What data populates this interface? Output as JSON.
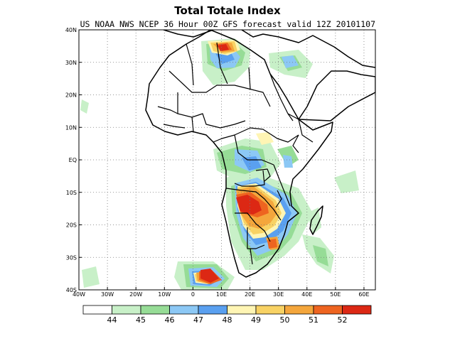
{
  "title": "Total Totale Index",
  "subtitle": "US NOAA NWS NCEP 36 Hour 00Z GFS forecast valid 12Z 20101107",
  "map": {
    "lon_range": [
      -40,
      64
    ],
    "lat_range": [
      -40,
      40
    ],
    "lon_ticks": [
      {
        "value": -40,
        "label": "40W"
      },
      {
        "value": -30,
        "label": "30W"
      },
      {
        "value": -20,
        "label": "20W"
      },
      {
        "value": -10,
        "label": "10W"
      },
      {
        "value": 0,
        "label": "0"
      },
      {
        "value": 10,
        "label": "10E"
      },
      {
        "value": 20,
        "label": "20E"
      },
      {
        "value": 30,
        "label": "30E"
      },
      {
        "value": 40,
        "label": "40E"
      },
      {
        "value": 50,
        "label": "50E"
      },
      {
        "value": 60,
        "label": "60E"
      }
    ],
    "lat_ticks": [
      {
        "value": 40,
        "label": "40N"
      },
      {
        "value": 30,
        "label": "30N"
      },
      {
        "value": 20,
        "label": "20N"
      },
      {
        "value": 10,
        "label": "10N"
      },
      {
        "value": 0,
        "label": "EQ"
      },
      {
        "value": -10,
        "label": "10S"
      },
      {
        "value": -20,
        "label": "20S"
      },
      {
        "value": -30,
        "label": "30S"
      },
      {
        "value": -40,
        "label": "40S"
      }
    ],
    "grid": true,
    "field_colors": {
      "44": "#c8f0c8",
      "45": "#96dc96",
      "46": "#8cc8f5",
      "47": "#5aa0f0",
      "48": "#fff5b4",
      "49": "#f8d264",
      "50": "#f4a63c",
      "51": "#ee6420",
      "52": "#dc2814"
    }
  },
  "colorbar": {
    "labels": [
      "44",
      "45",
      "46",
      "47",
      "48",
      "49",
      "50",
      "51",
      "52"
    ],
    "colors": [
      "#ffffff",
      "#c8f0c8",
      "#96dc96",
      "#8cc8f5",
      "#5aa0f0",
      "#fff5b4",
      "#f8d264",
      "#f4a63c",
      "#ee6420",
      "#dc2814"
    ]
  }
}
